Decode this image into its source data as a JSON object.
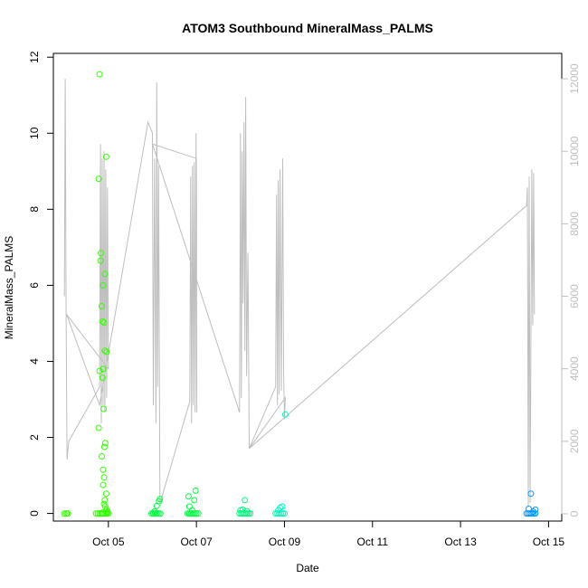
{
  "chart_data": {
    "type": "scatter",
    "title": "ATOM3 Southbound MineralMass_PALMS",
    "xlabel": "Date",
    "ylabel": "MineralMass_PALMS",
    "x_tick_labels": [
      "Oct 05",
      "Oct 07",
      "Oct 09",
      "Oct 11",
      "Oct 13",
      "Oct 15"
    ],
    "x_tick_values": [
      5,
      7,
      9,
      11,
      13,
      15
    ],
    "xlim": [
      3.75,
      15.3
    ],
    "ylim": [
      -0.2,
      12.1
    ],
    "y_ticks": [
      0,
      2,
      4,
      6,
      8,
      10,
      12
    ],
    "y2lim": [
      -200,
      12700
    ],
    "y2_ticks": [
      0,
      2000,
      4000,
      6000,
      8000,
      10000,
      12000
    ],
    "y2_color": "#bebebe",
    "grid": false,
    "colors": {
      "green": "#33ff00",
      "lime": "#00ff40",
      "spring": "#00ff80",
      "aqua": "#00ffbf",
      "azure": "#0099ff",
      "altitude_line": "#bebebe"
    },
    "series": [
      {
        "color": "#33ff00",
        "points": [
          [
            4.0,
            0.0
          ],
          [
            4.05,
            0.0
          ],
          [
            4.08,
            0.0
          ],
          [
            4.8,
            11.55
          ],
          [
            4.78,
            8.8
          ],
          [
            4.95,
            9.38
          ],
          [
            4.83,
            6.85
          ],
          [
            4.82,
            6.65
          ],
          [
            4.92,
            6.3
          ],
          [
            4.88,
            6.0
          ],
          [
            4.85,
            5.45
          ],
          [
            4.87,
            5.05
          ],
          [
            4.9,
            5.02
          ],
          [
            4.92,
            4.28
          ],
          [
            4.96,
            4.25
          ],
          [
            4.8,
            3.75
          ],
          [
            4.88,
            3.8
          ],
          [
            4.87,
            3.57
          ],
          [
            4.89,
            2.75
          ],
          [
            4.78,
            2.25
          ],
          [
            4.93,
            1.85
          ],
          [
            4.91,
            1.75
          ],
          [
            4.85,
            1.5
          ],
          [
            4.88,
            1.15
          ],
          [
            4.9,
            0.95
          ],
          [
            4.88,
            0.75
          ],
          [
            4.95,
            0.52
          ],
          [
            4.92,
            0.35
          ],
          [
            4.9,
            0.25
          ],
          [
            4.93,
            0.18
          ],
          [
            4.96,
            0.1
          ],
          [
            4.98,
            0.05
          ],
          [
            4.72,
            0.0
          ],
          [
            4.76,
            0.0
          ],
          [
            4.8,
            0.0
          ],
          [
            4.84,
            0.0
          ],
          [
            4.88,
            0.0
          ],
          [
            4.92,
            0.0
          ],
          [
            4.96,
            0.0
          ],
          [
            5.0,
            0.0
          ],
          [
            4.86,
            0.02
          ],
          [
            4.95,
            0.03
          ]
        ]
      },
      {
        "color": "#00ff40",
        "points": [
          [
            5.98,
            0.0
          ],
          [
            6.02,
            0.0
          ],
          [
            6.06,
            0.0
          ],
          [
            6.1,
            0.0
          ],
          [
            6.14,
            0.0
          ],
          [
            6.18,
            0.0
          ],
          [
            6.1,
            0.2
          ],
          [
            6.15,
            0.32
          ],
          [
            6.17,
            0.38
          ],
          [
            6.05,
            0.05
          ],
          [
            6.8,
            0.0
          ],
          [
            6.84,
            0.0
          ],
          [
            6.88,
            0.0
          ],
          [
            6.92,
            0.0
          ],
          [
            6.96,
            0.0
          ],
          [
            7.0,
            0.0
          ],
          [
            7.04,
            0.0
          ],
          [
            6.82,
            0.45
          ],
          [
            6.84,
            0.18
          ],
          [
            6.95,
            0.35
          ],
          [
            6.98,
            0.6
          ],
          [
            6.9,
            0.08
          ]
        ]
      },
      {
        "color": "#00ff80",
        "points": [
          [
            7.98,
            0.0
          ],
          [
            8.02,
            0.0
          ],
          [
            8.06,
            0.0
          ],
          [
            8.1,
            0.0
          ],
          [
            8.14,
            0.0
          ],
          [
            8.18,
            0.0
          ],
          [
            8.22,
            0.0
          ],
          [
            8.1,
            0.35
          ],
          [
            8.05,
            0.1
          ],
          [
            8.15,
            0.06
          ],
          [
            8.0,
            0.08
          ]
        ]
      },
      {
        "color": "#00ffbf",
        "points": [
          [
            8.8,
            0.0
          ],
          [
            8.84,
            0.0
          ],
          [
            8.88,
            0.0
          ],
          [
            8.92,
            0.0
          ],
          [
            8.96,
            0.0
          ],
          [
            9.0,
            0.0
          ],
          [
            8.9,
            0.15
          ],
          [
            8.95,
            0.18
          ],
          [
            8.86,
            0.08
          ],
          [
            9.02,
            2.6
          ]
        ]
      },
      {
        "color": "#0099ff",
        "points": [
          [
            14.5,
            0.0
          ],
          [
            14.54,
            0.0
          ],
          [
            14.58,
            0.0
          ],
          [
            14.62,
            0.0
          ],
          [
            14.66,
            0.0
          ],
          [
            14.7,
            0.0
          ],
          [
            14.6,
            0.52
          ],
          [
            14.55,
            0.12
          ],
          [
            14.7,
            0.1
          ],
          [
            14.65,
            0.05
          ]
        ]
      }
    ],
    "altitude_series": {
      "color": "#bebebe",
      "points": [
        [
          4.0,
          6000
        ],
        [
          4.02,
          12000
        ],
        [
          4.04,
          5500
        ],
        [
          4.06,
          1500
        ],
        [
          4.1,
          2000
        ],
        [
          4.8,
          3500
        ],
        [
          4.82,
          10200
        ],
        [
          4.84,
          2500
        ],
        [
          4.86,
          9800
        ],
        [
          4.88,
          3000
        ],
        [
          4.9,
          10000
        ],
        [
          4.92,
          2800
        ],
        [
          4.94,
          9500
        ],
        [
          4.96,
          3200
        ],
        [
          4.98,
          9000
        ],
        [
          5.0,
          4000
        ],
        [
          4.05,
          5500
        ],
        [
          4.8,
          3000
        ],
        [
          5.9,
          10800
        ],
        [
          6.0,
          10500
        ],
        [
          6.02,
          3000
        ],
        [
          6.05,
          9800
        ],
        [
          6.08,
          2500
        ],
        [
          6.1,
          11900
        ],
        [
          6.12,
          3500
        ],
        [
          6.14,
          9600
        ],
        [
          6.17,
          300
        ],
        [
          6.2,
          400
        ],
        [
          6.85,
          3100
        ],
        [
          6.87,
          9300
        ],
        [
          6.89,
          2500
        ],
        [
          6.91,
          9600
        ],
        [
          6.93,
          3000
        ],
        [
          6.95,
          9700
        ],
        [
          6.97,
          2800
        ],
        [
          6.99,
          10500
        ],
        [
          7.01,
          2800
        ],
        [
          7.0,
          9800
        ],
        [
          6.0,
          10200
        ],
        [
          7.98,
          2800
        ],
        [
          8.0,
          10500
        ],
        [
          8.02,
          3200
        ],
        [
          8.04,
          10000
        ],
        [
          8.06,
          5800
        ],
        [
          8.08,
          10800
        ],
        [
          8.1,
          4500
        ],
        [
          8.12,
          11500
        ],
        [
          8.14,
          3800
        ],
        [
          8.17,
          7200
        ],
        [
          8.2,
          1800
        ],
        [
          8.8,
          3500
        ],
        [
          8.82,
          8800
        ],
        [
          8.84,
          3000
        ],
        [
          8.86,
          9200
        ],
        [
          8.88,
          3300
        ],
        [
          8.9,
          9500
        ],
        [
          8.93,
          3400
        ],
        [
          8.96,
          9800
        ],
        [
          8.98,
          4000
        ],
        [
          9.0,
          2600
        ],
        [
          9.02,
          3200
        ],
        [
          8.2,
          1800
        ],
        [
          14.5,
          8500
        ],
        [
          14.52,
          9000
        ],
        [
          14.54,
          200
        ],
        [
          14.56,
          9300
        ],
        [
          14.58,
          300
        ],
        [
          14.62,
          9500
        ],
        [
          14.64,
          5200
        ],
        [
          14.66,
          9400
        ],
        [
          14.68,
          5500
        ]
      ]
    }
  }
}
